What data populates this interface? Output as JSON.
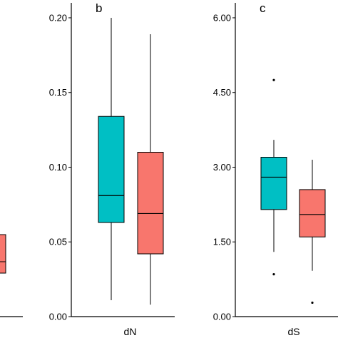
{
  "colors": {
    "series_1": "#00BFC4",
    "series_2": "#F8766D",
    "axis": "#000000"
  },
  "chart_data": [
    {
      "type": "box",
      "panel_label": "",
      "xlabel": "",
      "partially_visible": true,
      "series": [
        {
          "color": "series_2",
          "q1": null,
          "median": null,
          "q3": null,
          "whisker_low": null,
          "whisker_high": null,
          "outliers": []
        }
      ]
    },
    {
      "type": "box",
      "panel_label": "b",
      "xlabel": "dN",
      "ylim": [
        0,
        0.21
      ],
      "yticks": [
        0.0,
        0.05,
        0.1,
        0.15,
        0.2
      ],
      "ytick_labels": [
        "0.00",
        "0.05",
        "0.10",
        "0.15",
        "0.20"
      ],
      "series": [
        {
          "color": "series_1",
          "whisker_low": 0.011,
          "q1": 0.063,
          "median": 0.081,
          "q3": 0.134,
          "whisker_high": 0.2,
          "outliers": []
        },
        {
          "color": "series_2",
          "whisker_low": 0.008,
          "q1": 0.042,
          "median": 0.069,
          "q3": 0.11,
          "whisker_high": 0.189,
          "outliers": []
        }
      ]
    },
    {
      "type": "box",
      "panel_label": "c",
      "xlabel": "dS",
      "ylim": [
        0,
        6.3
      ],
      "yticks": [
        0.0,
        1.5,
        3.0,
        4.5,
        6.0
      ],
      "ytick_labels": [
        "0.00",
        "1.50",
        "3.00",
        "4.50",
        "6.00"
      ],
      "series": [
        {
          "color": "series_1",
          "whisker_low": 1.3,
          "q1": 2.15,
          "median": 2.8,
          "q3": 3.2,
          "whisker_high": 3.55,
          "outliers": [
            0.85,
            4.75
          ]
        },
        {
          "color": "series_2",
          "whisker_low": 0.92,
          "q1": 1.6,
          "median": 2.05,
          "q3": 2.55,
          "whisker_high": 3.15,
          "outliers": [
            0.28
          ]
        }
      ]
    }
  ]
}
